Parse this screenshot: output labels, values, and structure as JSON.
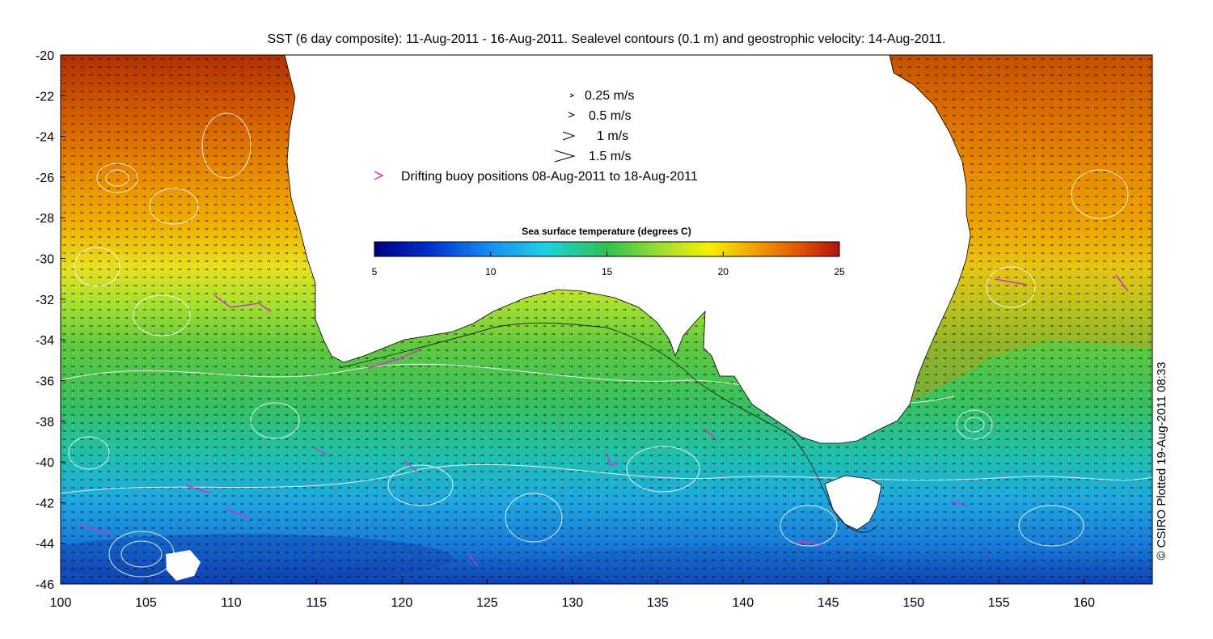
{
  "title": "SST (6 day composite): 11-Aug-2011 - 16-Aug-2011. Sealevel contours (0.1 m) and geostrophic velocity: 14-Aug-2011.",
  "axes": {
    "x_ticks": [
      "100",
      "105",
      "110",
      "115",
      "120",
      "125",
      "130",
      "135",
      "140",
      "145",
      "150",
      "155",
      "160"
    ],
    "y_ticks": [
      "-20",
      "-22",
      "-24",
      "-26",
      "-28",
      "-30",
      "-32",
      "-34",
      "-36",
      "-38",
      "-40",
      "-42",
      "-44",
      "-46"
    ],
    "lon_range": [
      100,
      164
    ],
    "lat_range": [
      -46,
      -20
    ]
  },
  "legend": {
    "speeds": [
      {
        "label": "0.25 m/s",
        "value": 0.25
      },
      {
        "label": "0.5 m/s",
        "value": 0.5
      },
      {
        "label": "1 m/s",
        "value": 1
      },
      {
        "label": "1.5 m/s",
        "value": 1.5
      }
    ],
    "buoy_label": "Drifting buoy positions 08-Aug-2011 to 18-Aug-2011",
    "buoy_color": "#cc33cc"
  },
  "colorbar": {
    "title": "Sea surface temperature (degrees C)",
    "ticks": [
      "5",
      "10",
      "15",
      "20",
      "25"
    ],
    "range": [
      5,
      25
    ]
  },
  "credit": "© CSIRO Plotted 19-Aug-2011 08:33",
  "colors": {
    "land": "#ffffff",
    "contour": "#ffffff",
    "coast": "#000000"
  }
}
